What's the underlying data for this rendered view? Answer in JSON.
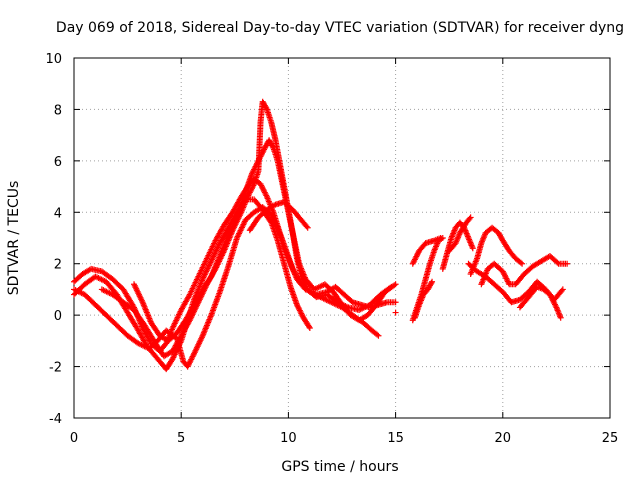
{
  "chart_data": {
    "type": "scatter",
    "title": "Day 069 of 2018, Sidereal Day-to-day VTEC variation (SDTVAR) for receiver dyng",
    "xlabel": "GPS time / hours",
    "ylabel": "SDTVAR / TECUs",
    "xlim": [
      0,
      25
    ],
    "ylim": [
      -4,
      10
    ],
    "xticks": [
      0,
      5,
      10,
      15,
      20,
      25
    ],
    "yticks": [
      -4,
      -2,
      0,
      2,
      4,
      6,
      8,
      10
    ],
    "xtick_labels": [
      "0",
      "5",
      "10",
      "15",
      "20",
      "25"
    ],
    "ytick_labels": [
      "-4",
      "-2",
      "0",
      "2",
      "4",
      "6",
      "8",
      "10"
    ],
    "grid": true,
    "marker": "plus",
    "color": "#ff0000",
    "tracks": [
      [
        [
          0.0,
          1.3
        ],
        [
          0.4,
          1.6
        ],
        [
          0.8,
          1.8
        ],
        [
          1.3,
          1.7
        ],
        [
          1.8,
          1.4
        ],
        [
          2.3,
          1.0
        ],
        [
          2.8,
          0.3
        ],
        [
          3.2,
          -0.5
        ],
        [
          3.6,
          -1.1
        ],
        [
          4.0,
          -1.4
        ],
        [
          4.3,
          -1.1
        ],
        [
          4.6,
          -0.5
        ],
        [
          5.0,
          0.2
        ],
        [
          5.4,
          0.8
        ],
        [
          5.8,
          1.5
        ],
        [
          6.2,
          2.2
        ],
        [
          6.6,
          2.9
        ],
        [
          7.0,
          3.5
        ],
        [
          7.4,
          4.0
        ],
        [
          7.8,
          4.6
        ],
        [
          8.1,
          5.0
        ],
        [
          8.4,
          5.3
        ],
        [
          8.7,
          5.1
        ],
        [
          9.0,
          4.6
        ],
        [
          9.3,
          4.0
        ],
        [
          9.6,
          3.2
        ],
        [
          9.9,
          2.5
        ],
        [
          10.2,
          1.8
        ],
        [
          10.5,
          1.3
        ],
        [
          10.8,
          1.0
        ]
      ],
      [
        [
          0.0,
          0.8
        ],
        [
          0.5,
          1.2
        ],
        [
          1.0,
          1.5
        ],
        [
          1.5,
          1.3
        ],
        [
          2.0,
          0.8
        ],
        [
          2.5,
          0.1
        ],
        [
          3.0,
          -0.6
        ],
        [
          3.4,
          -1.2
        ],
        [
          3.8,
          -1.6
        ],
        [
          4.1,
          -1.9
        ],
        [
          4.3,
          -2.1
        ],
        [
          4.6,
          -1.7
        ],
        [
          5.0,
          -1.0
        ],
        [
          5.3,
          -0.2
        ],
        [
          5.6,
          0.6
        ],
        [
          6.0,
          1.4
        ],
        [
          6.4,
          2.1
        ],
        [
          6.8,
          2.8
        ],
        [
          7.2,
          3.4
        ],
        [
          7.6,
          4.0
        ],
        [
          8.0,
          4.5
        ],
        [
          8.4,
          4.5
        ],
        [
          8.8,
          4.1
        ],
        [
          9.2,
          3.6
        ],
        [
          9.5,
          2.9
        ],
        [
          9.8,
          2.0
        ],
        [
          10.1,
          1.1
        ],
        [
          10.4,
          0.4
        ],
        [
          10.7,
          -0.1
        ],
        [
          11.0,
          -0.5
        ]
      ],
      [
        [
          0.0,
          1.0
        ],
        [
          0.5,
          0.8
        ],
        [
          1.0,
          0.4
        ],
        [
          1.5,
          0.0
        ],
        [
          2.0,
          -0.4
        ],
        [
          2.5,
          -0.8
        ],
        [
          3.0,
          -1.1
        ],
        [
          3.5,
          -1.3
        ],
        [
          3.9,
          -1.0
        ],
        [
          4.3,
          -0.6
        ],
        [
          4.8,
          -0.9
        ],
        [
          5.1,
          -1.8
        ],
        [
          5.3,
          -2.0
        ],
        [
          5.6,
          -1.5
        ],
        [
          6.0,
          -0.8
        ],
        [
          6.4,
          0.0
        ],
        [
          6.8,
          0.9
        ],
        [
          7.2,
          1.9
        ],
        [
          7.6,
          3.0
        ],
        [
          8.0,
          3.7
        ],
        [
          8.4,
          4.0
        ],
        [
          8.8,
          4.2
        ],
        [
          9.2,
          3.9
        ],
        [
          9.5,
          3.4
        ],
        [
          9.8,
          2.6
        ],
        [
          10.1,
          2.0
        ],
        [
          10.4,
          1.4
        ],
        [
          10.8,
          1.0
        ],
        [
          11.3,
          0.8
        ],
        [
          11.8,
          0.9
        ],
        [
          12.2,
          1.1
        ],
        [
          12.6,
          0.8
        ],
        [
          13.0,
          0.5
        ],
        [
          13.4,
          0.4
        ],
        [
          13.8,
          0.3
        ],
        [
          14.2,
          0.4
        ],
        [
          14.6,
          0.5
        ],
        [
          15.0,
          0.5
        ]
      ],
      [
        [
          1.3,
          1.0
        ],
        [
          1.8,
          0.8
        ],
        [
          2.3,
          0.5
        ],
        [
          2.8,
          0.2
        ],
        [
          3.3,
          -0.4
        ],
        [
          3.8,
          -1.1
        ],
        [
          4.2,
          -1.6
        ],
        [
          4.6,
          -1.4
        ],
        [
          5.0,
          -0.8
        ],
        [
          5.4,
          -0.2
        ],
        [
          5.8,
          0.5
        ],
        [
          6.2,
          1.2
        ],
        [
          6.6,
          1.8
        ],
        [
          7.0,
          2.5
        ],
        [
          7.4,
          3.3
        ],
        [
          7.8,
          4.0
        ],
        [
          8.1,
          4.6
        ],
        [
          8.4,
          5.1
        ],
        [
          8.6,
          5.6
        ],
        [
          8.7,
          7.5
        ],
        [
          8.8,
          8.3
        ],
        [
          9.0,
          8.0
        ],
        [
          9.2,
          7.5
        ],
        [
          9.4,
          6.8
        ],
        [
          9.6,
          5.9
        ],
        [
          9.8,
          5.0
        ],
        [
          10.0,
          4.1
        ],
        [
          10.2,
          3.2
        ],
        [
          10.4,
          2.2
        ],
        [
          10.6,
          1.5
        ],
        [
          10.9,
          1.0
        ],
        [
          11.3,
          0.7
        ],
        [
          11.8,
          0.8
        ],
        [
          12.3,
          0.5
        ],
        [
          12.8,
          0.3
        ],
        [
          13.3,
          0.2
        ],
        [
          13.8,
          0.4
        ],
        [
          14.3,
          0.8
        ],
        [
          14.8,
          1.1
        ]
      ],
      [
        [
          2.8,
          1.2
        ],
        [
          3.2,
          0.5
        ],
        [
          3.6,
          -0.3
        ],
        [
          4.0,
          -0.8
        ],
        [
          4.4,
          -1.0
        ],
        [
          4.8,
          -0.7
        ],
        [
          5.2,
          -0.2
        ],
        [
          5.6,
          0.4
        ],
        [
          6.0,
          1.0
        ],
        [
          6.4,
          1.5
        ],
        [
          6.8,
          2.3
        ],
        [
          7.2,
          3.1
        ],
        [
          7.6,
          3.8
        ],
        [
          8.0,
          4.8
        ],
        [
          8.3,
          5.5
        ],
        [
          8.6,
          6.0
        ],
        [
          8.9,
          6.5
        ],
        [
          9.1,
          6.8
        ],
        [
          9.3,
          6.5
        ],
        [
          9.5,
          6.0
        ],
        [
          9.7,
          5.2
        ],
        [
          9.9,
          4.4
        ],
        [
          10.1,
          3.6
        ],
        [
          10.3,
          2.8
        ],
        [
          10.5,
          2.0
        ],
        [
          10.8,
          1.4
        ],
        [
          11.2,
          1.0
        ],
        [
          11.7,
          1.2
        ],
        [
          12.1,
          0.9
        ],
        [
          12.5,
          0.4
        ],
        [
          12.9,
          0.0
        ],
        [
          13.3,
          -0.2
        ],
        [
          13.7,
          0.0
        ],
        [
          14.1,
          0.4
        ],
        [
          14.5,
          0.9
        ],
        [
          15.0,
          1.2
        ]
      ],
      [
        [
          8.2,
          3.3
        ],
        [
          8.6,
          3.8
        ],
        [
          9.0,
          4.1
        ],
        [
          9.4,
          4.3
        ],
        [
          9.8,
          4.4
        ],
        [
          10.2,
          4.1
        ],
        [
          10.6,
          3.7
        ],
        [
          10.9,
          3.4
        ]
      ],
      [
        [
          11.0,
          0.9
        ],
        [
          11.5,
          0.7
        ],
        [
          12.0,
          0.5
        ],
        [
          12.5,
          0.3
        ],
        [
          13.0,
          0.0
        ],
        [
          13.5,
          -0.3
        ],
        [
          13.9,
          -0.6
        ],
        [
          14.2,
          -0.8
        ]
      ],
      [
        [
          15.0,
          0.1
        ]
      ],
      [
        [
          15.8,
          -0.2
        ],
        [
          16.0,
          0.3
        ],
        [
          16.2,
          0.8
        ],
        [
          16.4,
          1.4
        ],
        [
          16.6,
          2.0
        ],
        [
          16.8,
          2.5
        ],
        [
          17.0,
          2.9
        ],
        [
          17.2,
          3.0
        ]
      ],
      [
        [
          15.8,
          2.0
        ],
        [
          16.1,
          2.5
        ],
        [
          16.4,
          2.8
        ],
        [
          16.8,
          2.9
        ],
        [
          17.1,
          3.0
        ]
      ],
      [
        [
          15.9,
          -0.1
        ],
        [
          16.1,
          0.4
        ],
        [
          16.3,
          0.8
        ],
        [
          16.5,
          1.0
        ],
        [
          16.7,
          1.3
        ]
      ],
      [
        [
          17.2,
          1.8
        ],
        [
          17.4,
          2.4
        ],
        [
          17.6,
          3.0
        ],
        [
          17.8,
          3.4
        ],
        [
          18.0,
          3.6
        ],
        [
          18.2,
          3.4
        ],
        [
          18.4,
          3.0
        ],
        [
          18.6,
          2.6
        ]
      ],
      [
        [
          17.5,
          2.5
        ],
        [
          17.8,
          2.8
        ],
        [
          18.0,
          3.2
        ],
        [
          18.3,
          3.6
        ],
        [
          18.5,
          3.8
        ]
      ],
      [
        [
          18.5,
          1.6
        ],
        [
          18.8,
          2.2
        ],
        [
          19.0,
          2.8
        ],
        [
          19.2,
          3.2
        ],
        [
          19.5,
          3.4
        ],
        [
          19.8,
          3.2
        ],
        [
          20.0,
          2.9
        ],
        [
          20.3,
          2.5
        ],
        [
          20.6,
          2.2
        ],
        [
          20.9,
          2.0
        ]
      ],
      [
        [
          18.4,
          2.0
        ],
        [
          18.8,
          1.7
        ],
        [
          19.2,
          1.5
        ],
        [
          19.6,
          1.2
        ],
        [
          20.0,
          0.9
        ],
        [
          20.4,
          0.5
        ],
        [
          20.8,
          0.6
        ],
        [
          21.2,
          0.9
        ],
        [
          21.6,
          1.3
        ],
        [
          22.0,
          1.0
        ],
        [
          22.4,
          0.6
        ],
        [
          22.8,
          1.0
        ]
      ],
      [
        [
          19.0,
          1.2
        ],
        [
          19.3,
          1.8
        ],
        [
          19.6,
          2.0
        ],
        [
          20.0,
          1.7
        ],
        [
          20.3,
          1.2
        ],
        [
          20.6,
          1.2
        ],
        [
          21.0,
          1.6
        ],
        [
          21.4,
          1.9
        ],
        [
          21.8,
          2.1
        ],
        [
          22.2,
          2.3
        ],
        [
          22.6,
          2.0
        ],
        [
          23.0,
          2.0
        ]
      ],
      [
        [
          20.8,
          0.3
        ],
        [
          21.2,
          0.7
        ],
        [
          21.6,
          1.1
        ],
        [
          21.9,
          1.0
        ],
        [
          22.2,
          0.8
        ],
        [
          22.5,
          0.3
        ],
        [
          22.7,
          -0.1
        ]
      ]
    ]
  }
}
